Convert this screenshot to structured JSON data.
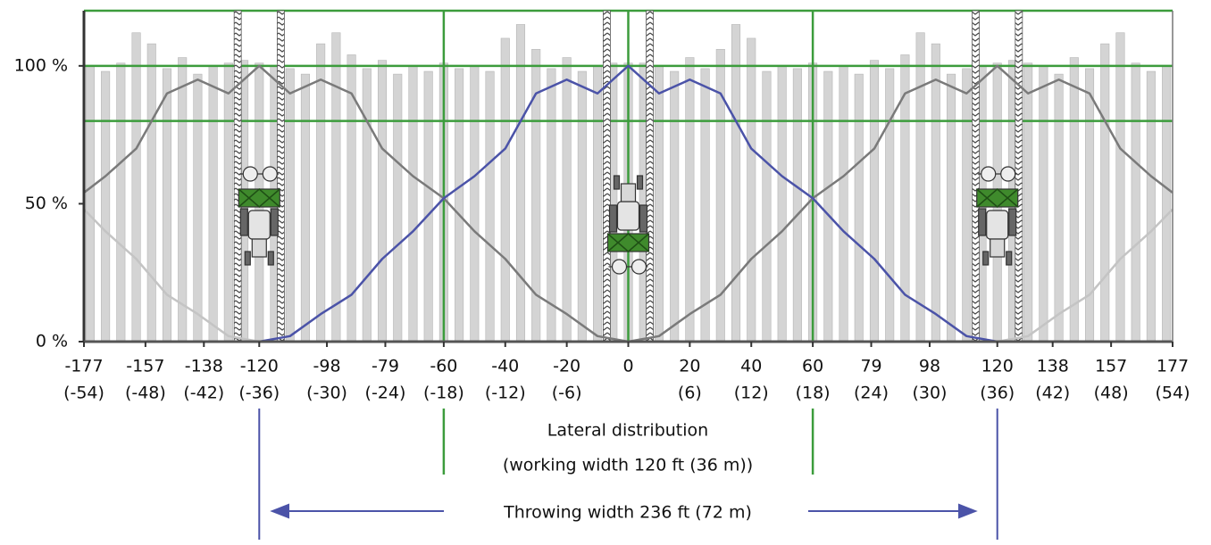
{
  "chart_data": {
    "type": "line",
    "x": [
      -177,
      -170,
      -160,
      -150,
      -140,
      -130,
      -120,
      -110,
      -100,
      -90,
      -80,
      -70,
      -60,
      -50,
      -40,
      -30,
      -20,
      -10,
      0,
      10,
      20,
      30,
      40,
      50,
      60,
      70,
      80,
      90,
      100,
      110,
      120,
      130,
      140,
      150,
      160,
      170,
      177
    ],
    "series": [
      {
        "color": "#c4c4c4",
        "values": [
          48,
          40,
          30,
          17,
          10,
          2,
          0,
          null,
          null,
          null,
          null,
          null,
          null,
          null,
          null,
          null,
          null,
          null,
          null,
          null,
          null,
          null,
          null,
          null,
          null,
          null,
          null,
          null,
          null,
          null,
          null,
          null,
          null,
          null,
          null,
          null,
          null
        ]
      },
      {
        "color": "#c4c4c4",
        "values": [
          null,
          null,
          null,
          null,
          null,
          null,
          null,
          null,
          null,
          null,
          null,
          null,
          null,
          null,
          null,
          null,
          null,
          null,
          null,
          null,
          null,
          null,
          null,
          null,
          null,
          null,
          null,
          null,
          null,
          null,
          0,
          2,
          10,
          17,
          30,
          40,
          48
        ]
      },
      {
        "color": "#7a7a7a",
        "values": [
          54,
          60,
          70,
          90,
          95,
          90,
          100,
          90,
          95,
          90,
          70,
          60,
          52,
          40,
          30,
          17,
          10,
          2,
          0,
          null,
          null,
          null,
          null,
          null,
          null,
          null,
          null,
          null,
          null,
          null,
          null,
          null,
          null,
          null,
          null,
          null,
          null
        ]
      },
      {
        "color": "#7a7a7a",
        "values": [
          null,
          null,
          null,
          null,
          null,
          null,
          null,
          null,
          null,
          null,
          null,
          null,
          null,
          null,
          null,
          null,
          null,
          null,
          0,
          2,
          10,
          17,
          30,
          40,
          52,
          60,
          70,
          90,
          95,
          90,
          100,
          90,
          95,
          90,
          70,
          60,
          54
        ]
      },
      {
        "color": "#4b53a8",
        "values": [
          null,
          null,
          null,
          null,
          null,
          null,
          0,
          2,
          10,
          17,
          30,
          40,
          52,
          60,
          70,
          90,
          95,
          90,
          100,
          90,
          95,
          90,
          70,
          60,
          52,
          40,
          30,
          17,
          10,
          2,
          0,
          null,
          null,
          null,
          null,
          null,
          null
        ]
      }
    ],
    "bars": {
      "color": "#d4d4d4",
      "x": [
        -175,
        -170,
        -165,
        -160,
        -155,
        -150,
        -145,
        -140,
        -135,
        -130,
        -125,
        -120,
        -115,
        -110,
        -105,
        -100,
        -95,
        -90,
        -85,
        -80,
        -75,
        -70,
        -65,
        -60,
        -55,
        -50,
        -45,
        -40,
        -35,
        -30,
        -25,
        -20,
        -15,
        -10,
        -5,
        0,
        5,
        10,
        15,
        20,
        25,
        30,
        35,
        40,
        45,
        50,
        55,
        60,
        65,
        70,
        75,
        80,
        85,
        90,
        95,
        100,
        105,
        110,
        115,
        120,
        125,
        130,
        135,
        140,
        145,
        150,
        155,
        160,
        165,
        170,
        175
      ],
      "values": [
        100,
        98,
        101,
        112,
        108,
        99,
        103,
        97,
        100,
        101,
        102,
        101,
        100,
        99,
        97,
        108,
        112,
        104,
        99,
        102,
        97,
        100,
        98,
        101,
        99,
        100,
        98,
        110,
        115,
        106,
        99,
        103,
        98,
        100,
        101,
        101,
        101,
        100,
        98,
        103,
        99,
        106,
        115,
        110,
        98,
        100,
        99,
        101,
        98,
        100,
        97,
        102,
        99,
        104,
        112,
        108,
        97,
        99,
        100,
        101,
        102,
        101,
        100,
        97,
        103,
        99,
        108,
        112,
        101,
        98,
        100
      ]
    },
    "xlim": [
      -177,
      177
    ],
    "ylim": [
      0,
      120
    ],
    "xticks": [
      -177,
      -157,
      -138,
      -120,
      -98,
      -79,
      -60,
      -40,
      -20,
      0,
      20,
      40,
      60,
      79,
      98,
      120,
      138,
      157,
      177
    ],
    "xtick_sublabels": [
      "(-54)",
      "(-48)",
      "(-42)",
      "(-36)",
      "(-30)",
      "(-24)",
      "(-18)",
      "(-12)",
      "(-6)",
      null,
      "(6)",
      "(12)",
      "(18)",
      "(24)",
      "(30)",
      "(36)",
      "(42)",
      "(48)",
      "(54)"
    ],
    "yticks": [
      {
        "value": 0,
        "label": "0 %"
      },
      {
        "value": 50,
        "label": "50 %"
      },
      {
        "value": 100,
        "label": "100 %"
      }
    ],
    "hlines": [
      80,
      100,
      120
    ],
    "vlines": [
      -60,
      0,
      60
    ],
    "reference_color": "#3c9c3c",
    "tramlines": [
      -127,
      -113,
      -7,
      7,
      113,
      127
    ],
    "annotations": {
      "lateral": "Lateral distribution",
      "working": "(working width 120 ft (36 m))",
      "throwing": "Throwing width 236 ft (72 m)"
    }
  }
}
